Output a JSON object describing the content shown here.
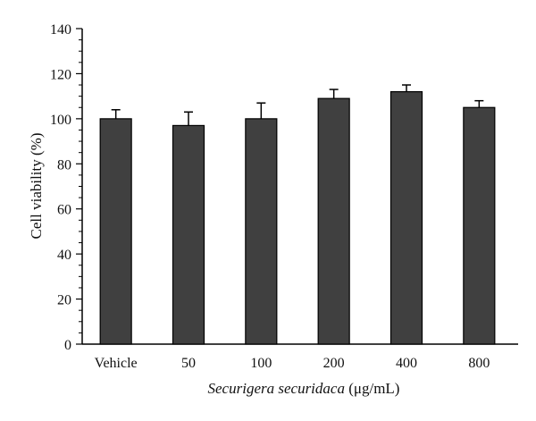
{
  "chart_data": {
    "type": "bar",
    "categories": [
      "Vehicle",
      "50",
      "100",
      "200",
      "400",
      "800"
    ],
    "values": [
      100,
      97,
      100,
      109,
      112,
      105
    ],
    "error_upper": [
      4,
      6,
      7,
      4,
      3,
      3
    ],
    "xlabel_italic": "Securigera securidaca",
    "xlabel_unit": " (μg/mL)",
    "ylabel": "Cell viability (%)",
    "ylim": [
      0,
      140
    ],
    "yticks": [
      0,
      20,
      40,
      60,
      80,
      100,
      120,
      140
    ],
    "grid": false,
    "bar_color": "#404040"
  }
}
